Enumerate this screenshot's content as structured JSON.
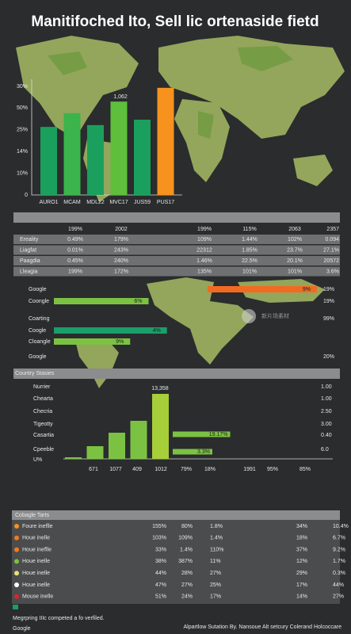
{
  "title": "Manitifoched Ito, Sell lic ortenaside fietd",
  "bar_chart": {
    "y_axis_labels": [
      "0",
      "10%",
      "14%",
      "25%",
      "50%",
      "30%"
    ],
    "categories": [
      "AURO1",
      "MCAM",
      "MDL22",
      "MVC17",
      "JUS59",
      "PUS17"
    ],
    "values": [
      18.8,
      22.6,
      19.3,
      25.8,
      20.8,
      29.6
    ],
    "ylim": [
      0,
      30
    ],
    "colors": [
      "#1aa05c",
      "#3cb44c",
      "#1aa05c",
      "#5dbf3b",
      "#1aa05c",
      "#f7921e"
    ],
    "annotation": "1,062"
  },
  "top_table": {
    "columns": [
      "199%",
      "2002",
      "199%",
      "115%",
      "2063",
      "2357"
    ],
    "rows": [
      [
        "Ereality",
        "0.49%",
        "179%",
        "109%",
        "1.44%",
        "102%",
        "0.094"
      ],
      [
        "Liagfat",
        "0.01%",
        "243%",
        "22312",
        "1.85%",
        "23.7%",
        "27.1%"
      ],
      [
        "Paagdia",
        "0.45%",
        "240%",
        "1.46%",
        "22.5%",
        "20.1%",
        "20572"
      ],
      [
        "Lleagia",
        "199%",
        "172%",
        "135%",
        "101%",
        "101%",
        "3.6%"
      ]
    ]
  },
  "hbar_section": {
    "rows": [
      {
        "label": "Google",
        "right": "19%",
        "bar": {
          "from": 58.4,
          "to": 100,
          "label": "9%",
          "color": "#f26a22"
        }
      },
      {
        "label": "Coongle",
        "right": "19%",
        "bar": {
          "from": 0,
          "to": 36,
          "label": "6%",
          "color": "#7cc242"
        }
      },
      {
        "label": "Coarting",
        "right": "99%"
      },
      {
        "label": "Coogle",
        "bar": {
          "from": 0,
          "to": 43,
          "label": "4%",
          "color": "#1a9e6a"
        }
      },
      {
        "label": "Cloangle",
        "bar": {
          "from": 0,
          "to": 29,
          "label": "9%",
          "color": "#7cc242"
        }
      },
      {
        "label": "Google",
        "right": "20%"
      }
    ]
  },
  "country": {
    "title": "Country Stasies",
    "row_labels": [
      "Nurrier",
      "Chearta",
      "Checria",
      "Tigeotty",
      "Casartia",
      "Cpeeble",
      "U%"
    ],
    "right_values": [
      "1.00",
      "1.00",
      "2.50",
      "3.00",
      "0.40",
      "6.0"
    ],
    "values": [
      326,
      2606,
      5376,
      7819,
      13358
    ],
    "bar_label": "13,358",
    "hbars": [
      {
        "length": 29,
        "label": "19.17%"
      },
      {
        "length": 20,
        "label": "3.3%"
      }
    ],
    "x_labels": [
      "671",
      "1077",
      "409",
      "1012",
      "79%",
      "18%",
      "1991",
      "95%",
      "85%"
    ]
  },
  "bottom_table": {
    "title": "Cobagle Tarts",
    "rows": [
      {
        "color": "#f7921e",
        "cells": [
          "Foure ineflle",
          "155%",
          "80%",
          "1.8%",
          "34%",
          "10.4%"
        ]
      },
      {
        "color": "#f07a1e",
        "cells": [
          "Houe inelle",
          "103%",
          "109%",
          "1.4%",
          "18%",
          "6.7%"
        ]
      },
      {
        "color": "#f07a1e",
        "cells": [
          "Houe ineflle",
          "33%",
          "1.4%",
          "110%",
          "37%",
          "9.2%"
        ]
      },
      {
        "color": "#7cc242",
        "cells": [
          "Houe inelle",
          "38%",
          "387%",
          "11%",
          "12%",
          "1.7%"
        ]
      },
      {
        "color": "#e8e07a",
        "cells": [
          "Houe inelle",
          "44%",
          "28%",
          "27%",
          "29%",
          "0.3%"
        ]
      },
      {
        "color": "#ffffff",
        "cells": [
          "Houe inelle",
          "47%",
          "27%",
          "25%",
          "17%",
          "44%"
        ]
      },
      {
        "color": "#d8262b",
        "cells": [
          "Mouse inelle",
          "51%",
          "24%",
          "17%",
          "14%",
          "27%"
        ]
      }
    ]
  },
  "watermark": "新片场素材",
  "footer": {
    "note": "Megrpring IIIc competed a fo verfiled.",
    "brand": "Google",
    "credit": "Alpartlow Sutation By. Nansoue Alt setcury Colerand Holcoccare"
  }
}
